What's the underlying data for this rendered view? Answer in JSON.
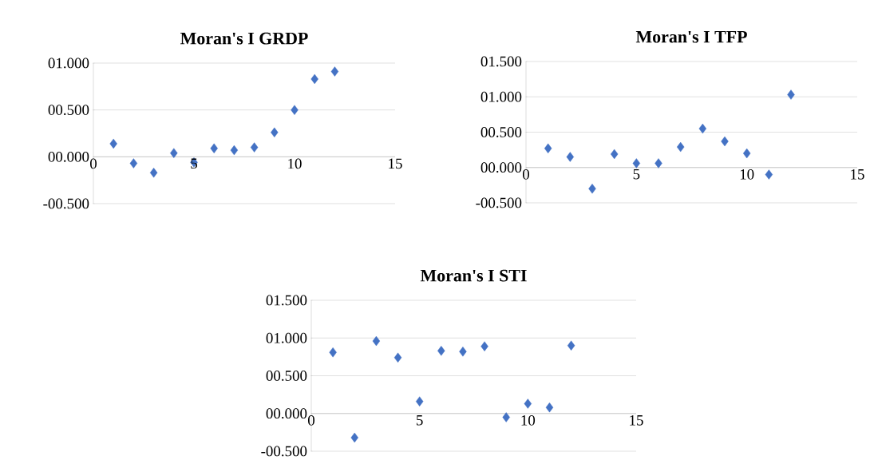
{
  "chart_data": [
    {
      "type": "scatter",
      "title": "Moran's I  GRDP",
      "x": [
        1,
        2,
        3,
        4,
        5,
        6,
        7,
        8,
        9,
        10,
        11,
        12
      ],
      "values": [
        0.14,
        -0.07,
        -0.17,
        0.04,
        -0.06,
        0.09,
        0.07,
        0.1,
        0.26,
        0.5,
        0.83,
        0.91
      ],
      "color": "#4472c4",
      "marker": "diamond",
      "grid": "y",
      "xlim": [
        0,
        15
      ],
      "xticks": [
        0,
        5,
        10,
        15
      ],
      "ylim": [
        -0.5,
        1.0
      ],
      "yticks": [
        {
          "value": -0.5,
          "label": "-00.500"
        },
        {
          "value": 0,
          "label": "00.000"
        },
        {
          "value": 0.5,
          "label": "00.500"
        },
        {
          "value": 1.0,
          "label": "01.000"
        }
      ]
    },
    {
      "type": "scatter",
      "title": "Moran's I  TFP",
      "x": [
        1,
        2,
        3,
        4,
        5,
        6,
        7,
        8,
        9,
        10,
        11,
        12
      ],
      "values": [
        0.27,
        0.15,
        -0.3,
        0.19,
        0.06,
        0.06,
        0.29,
        0.55,
        0.37,
        0.2,
        -0.1,
        1.03
      ],
      "color": "#4472c4",
      "marker": "diamond",
      "grid": "y",
      "xlim": [
        0,
        15
      ],
      "xticks": [
        0,
        5,
        10,
        15
      ],
      "ylim": [
        -0.5,
        1.5
      ],
      "yticks": [
        {
          "value": -0.5,
          "label": "-00.500"
        },
        {
          "value": 0,
          "label": "00.000"
        },
        {
          "value": 0.5,
          "label": "00.500"
        },
        {
          "value": 1.0,
          "label": "01.000"
        },
        {
          "value": 1.5,
          "label": "01.500"
        }
      ]
    },
    {
      "type": "scatter",
      "title": "Moran's I  STI",
      "x": [
        1,
        2,
        3,
        4,
        5,
        6,
        7,
        8,
        9,
        10,
        11,
        12
      ],
      "values": [
        0.81,
        -0.32,
        0.96,
        0.74,
        0.16,
        0.83,
        0.82,
        0.89,
        -0.05,
        0.13,
        0.08,
        0.9
      ],
      "color": "#4472c4",
      "marker": "diamond",
      "grid": "y",
      "xlim": [
        0,
        15
      ],
      "xticks": [
        0,
        5,
        10,
        15
      ],
      "ylim": [
        -0.5,
        1.5
      ],
      "yticks": [
        {
          "value": -0.5,
          "label": "-00.500"
        },
        {
          "value": 0,
          "label": "00.000"
        },
        {
          "value": 0.5,
          "label": "00.500"
        },
        {
          "value": 1.0,
          "label": "01.000"
        },
        {
          "value": 1.5,
          "label": "01.500"
        }
      ]
    }
  ]
}
